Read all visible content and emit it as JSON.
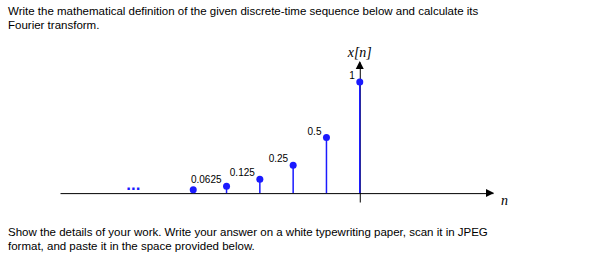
{
  "chart_data": {
    "type": "stem",
    "title": "Write the mathematical definition of the given discrete-time sequence below and calculate its\nFourier transform.",
    "x_label": "n",
    "y_label": "x[n]",
    "x": [
      -5,
      -4,
      -3,
      -2,
      -1,
      0
    ],
    "values": [
      0.03125,
      0.0625,
      0.125,
      0.25,
      0.5,
      1.0
    ],
    "value_labels": [
      null,
      "0.0625",
      "0.125",
      "0.25",
      "0.5",
      "1"
    ],
    "data_labels": true,
    "color": "#1a1aff",
    "marker": "circle",
    "xlim": [
      -9,
      4
    ],
    "ylim": [
      -0.08,
      1.18
    ],
    "tick_labels": false,
    "annotations": [
      {
        "text": "Show the details of your work. Write your answer on a white typewriting paper, scan it in JPEG\nformat, and paste it in the space provided below."
      },
      {
        "text": "...",
        "x": -6.8,
        "y": 0.028
      }
    ]
  }
}
